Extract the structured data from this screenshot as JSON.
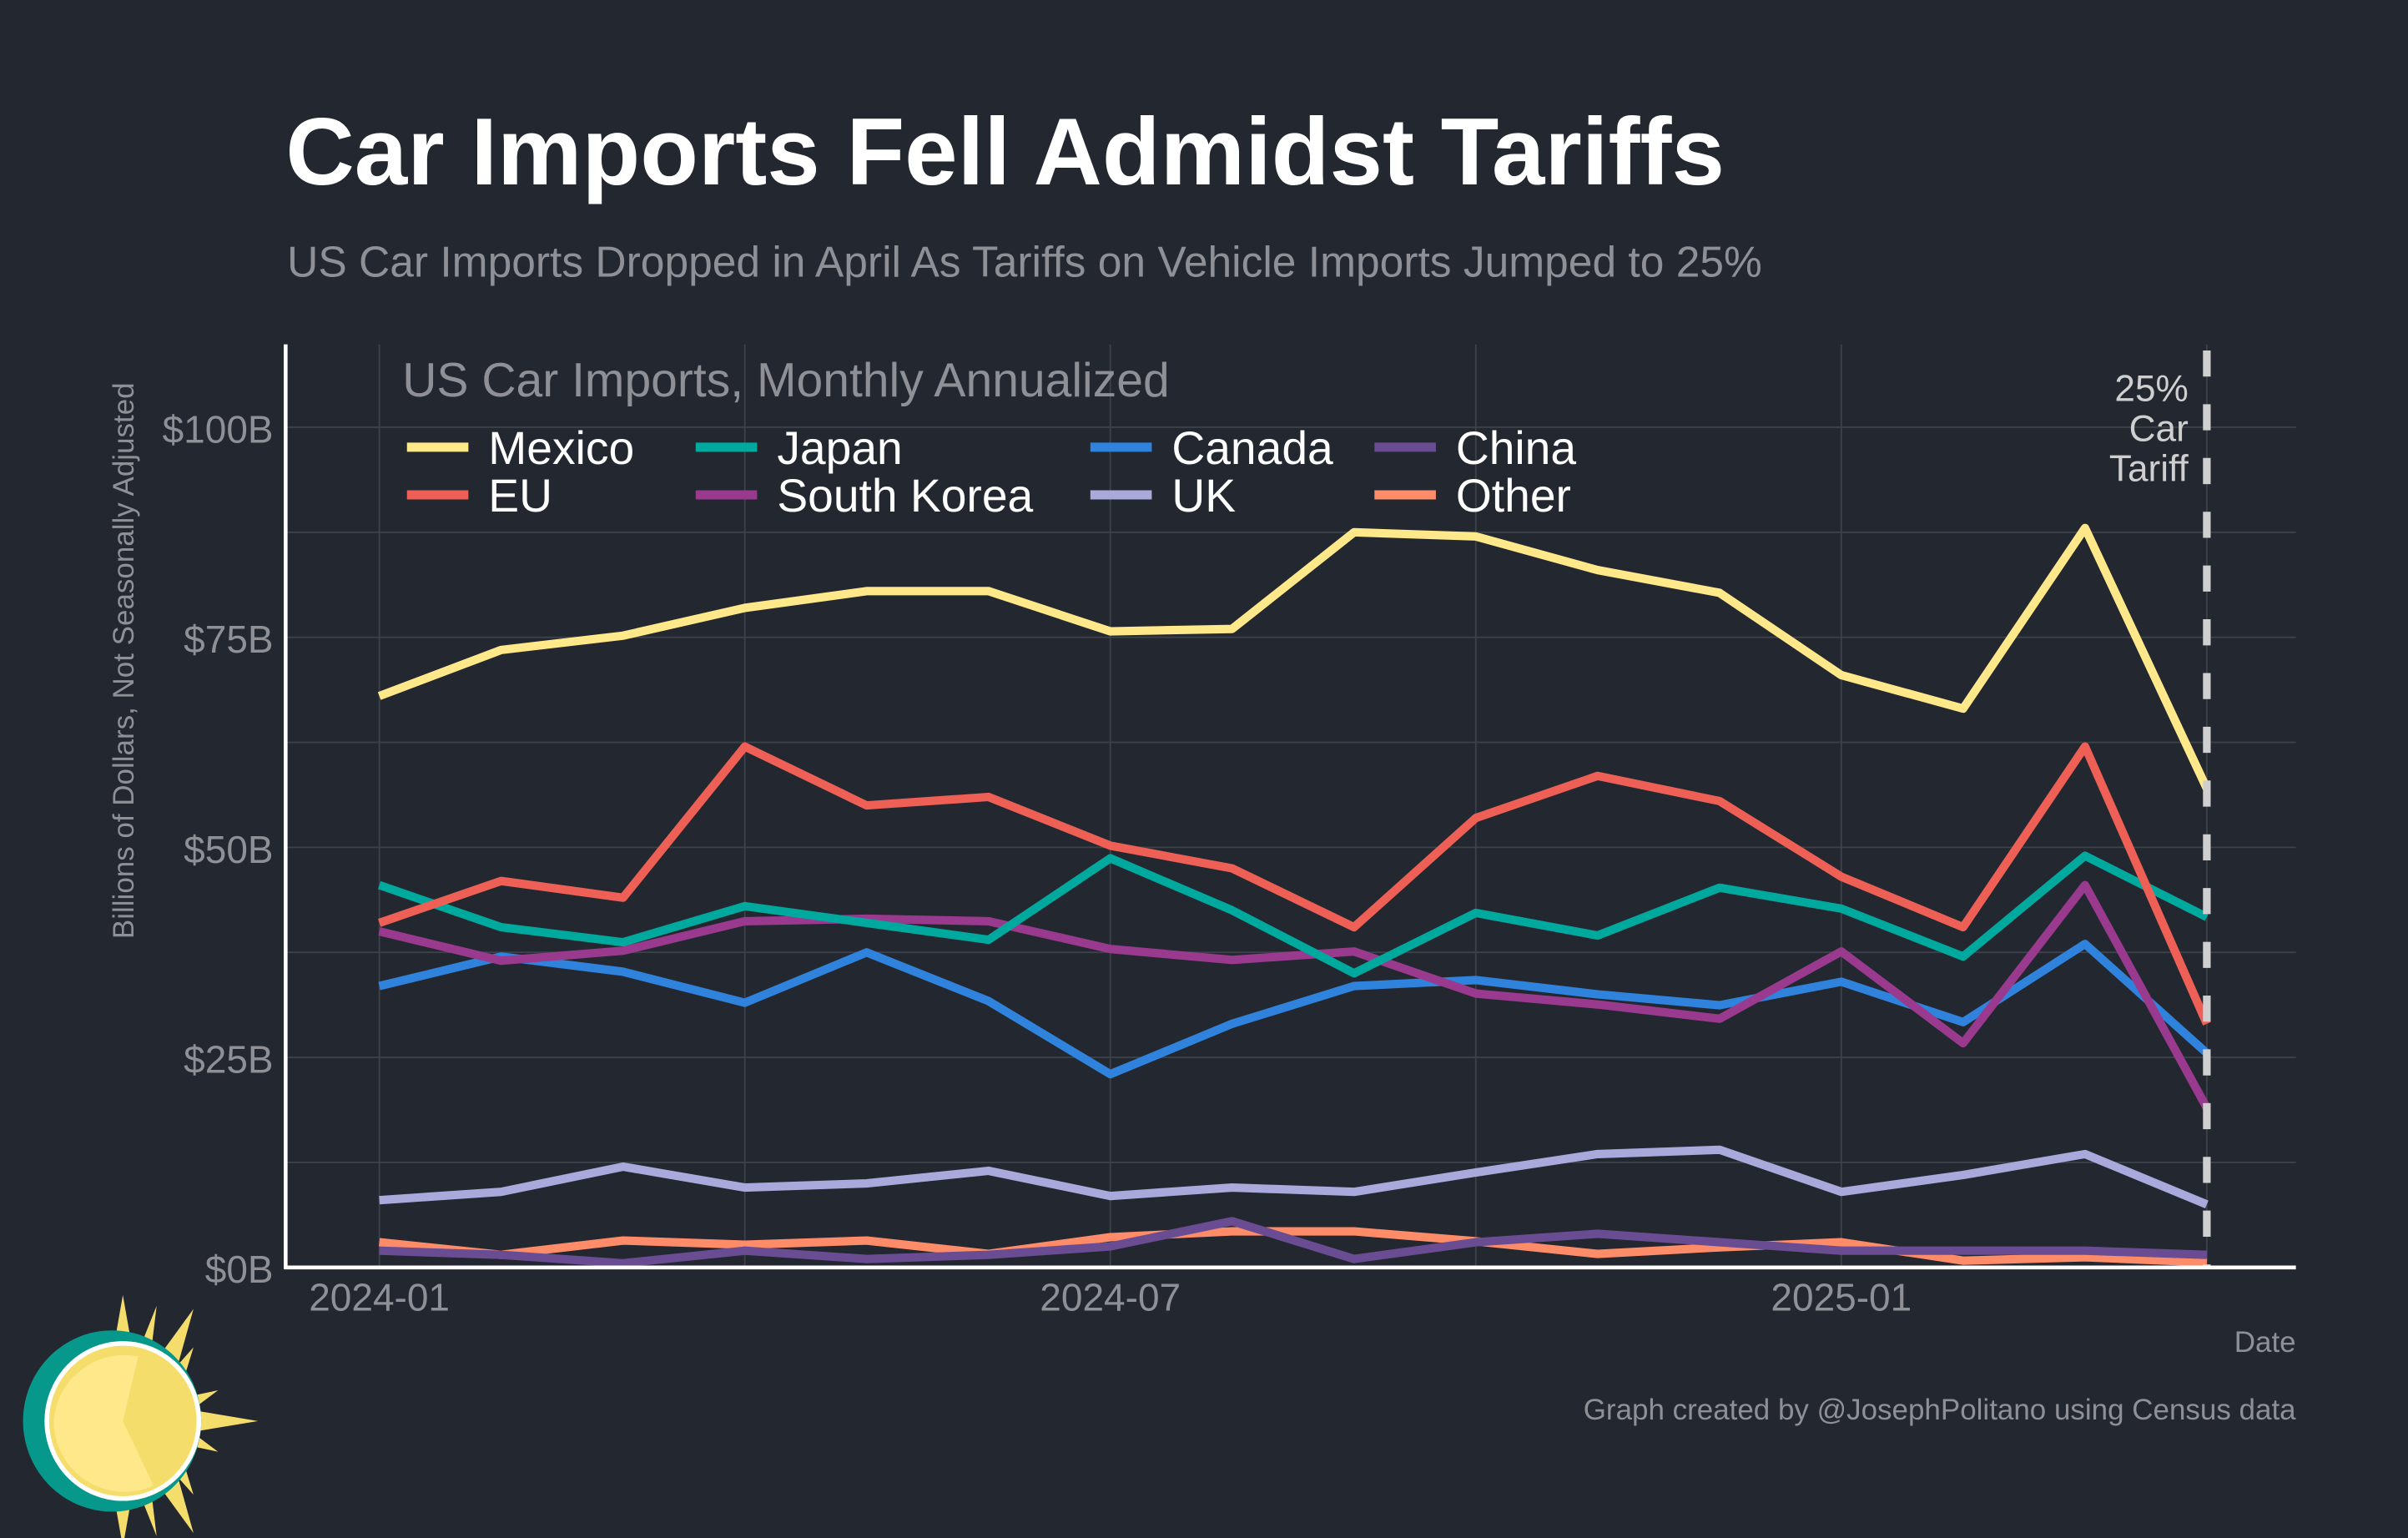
{
  "header": {
    "title": "Car Imports Fell Admidst Tariffs",
    "subtitle": "US Car Imports Dropped in April As Tariffs on Vehicle Imports Jumped to 25%"
  },
  "footer": {
    "credit": "Graph created by @JosephPolitano using Census data"
  },
  "logo": "sun-logo",
  "chart_data": {
    "type": "line",
    "title": "US Car Imports, Monthly Annualized",
    "xlabel": "Date",
    "ylabel": "Billions of Dollars, Not Seasonally Adjusted",
    "ylim": [
      0,
      110
    ],
    "grid": true,
    "legend_placement": "top-left",
    "x": [
      "2024-01",
      "2024-02",
      "2024-03",
      "2024-04",
      "2024-05",
      "2024-06",
      "2024-07",
      "2024-08",
      "2024-09",
      "2024-10",
      "2024-11",
      "2024-12",
      "2025-01",
      "2025-02",
      "2025-03",
      "2025-04"
    ],
    "x_ticks": [
      "2024-01",
      "2024-07",
      "2025-01"
    ],
    "y_ticks": [
      {
        "value": 0,
        "label": "$0B"
      },
      {
        "value": 25,
        "label": "$25B"
      },
      {
        "value": 50,
        "label": "$50B"
      },
      {
        "value": 75,
        "label": "$75B"
      },
      {
        "value": 100,
        "label": "$100B"
      }
    ],
    "annotation": {
      "x": "2025-04",
      "lines": [
        "25%",
        "Car",
        "Tariff"
      ],
      "color": "#cfcfcf"
    },
    "series": [
      {
        "name": "Mexico",
        "color": "#fee88a",
        "values": [
          68,
          73.5,
          75.2,
          78.5,
          80.5,
          80.5,
          75.7,
          76,
          87.5,
          87,
          83,
          80.3,
          70.5,
          66.5,
          88,
          57
        ]
      },
      {
        "name": "EU",
        "color": "#ee6055",
        "values": [
          41,
          46,
          44,
          62,
          55,
          56,
          50.2,
          47.5,
          40.5,
          53.5,
          58.5,
          55.5,
          46.5,
          40.5,
          62,
          29
        ]
      },
      {
        "name": "Japan",
        "color": "#00a99d",
        "values": [
          45.5,
          40.5,
          38.7,
          43,
          41,
          39,
          48.7,
          42.5,
          35,
          42.2,
          39.5,
          45.2,
          42.7,
          37,
          49,
          41.7
        ]
      },
      {
        "name": "South Korea",
        "color": "#9a3a8e",
        "values": [
          40,
          36.5,
          37.7,
          41.2,
          41.5,
          41.2,
          37.9,
          36.6,
          37.6,
          32.6,
          31.3,
          29.6,
          37.6,
          26.7,
          45.5,
          19
        ]
      },
      {
        "name": "Canada",
        "color": "#3083dc",
        "values": [
          33.5,
          37,
          35.2,
          31.5,
          37.5,
          31.7,
          23,
          29,
          33.5,
          34.2,
          32.5,
          31.2,
          34,
          29.2,
          38.5,
          25.5
        ]
      },
      {
        "name": "UK",
        "color": "#a9a9dc",
        "values": [
          8,
          9,
          12,
          9.5,
          10,
          11.5,
          8.5,
          9.5,
          9,
          11.3,
          13.5,
          14,
          9,
          11,
          13.5,
          7.5
        ]
      },
      {
        "name": "China",
        "color": "#6a4c93",
        "values": [
          2,
          1.5,
          0.5,
          2,
          1,
          1.5,
          2.5,
          5.5,
          1,
          3,
          4,
          3,
          2,
          2,
          2,
          1.5
        ]
      },
      {
        "name": "Other",
        "color": "#ff8c69",
        "values": [
          3,
          1.5,
          3.2,
          2.7,
          3.2,
          1.6,
          3.6,
          4.3,
          4.3,
          3.1,
          1.6,
          2.4,
          3,
          0.8,
          1.2,
          0.6
        ]
      }
    ]
  }
}
